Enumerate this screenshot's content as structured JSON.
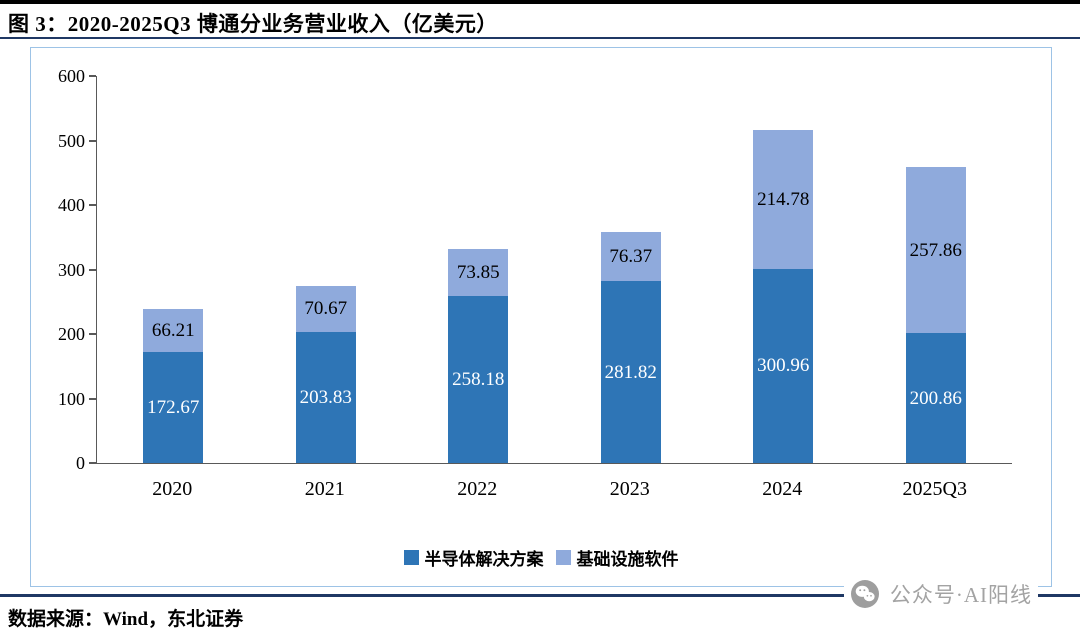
{
  "header": {
    "title": "图 3：2020-2025Q3 博通分业务营业收入（亿美元）"
  },
  "chart_data": {
    "type": "bar",
    "stacked": true,
    "title": "2020-2025Q3 博通分业务营业收入（亿美元）",
    "categories": [
      "2020",
      "2021",
      "2022",
      "2023",
      "2024",
      "2025Q3"
    ],
    "series": [
      {
        "name": "半导体解决方案",
        "color": "#2E75B6",
        "label_color": "#FFFFFF",
        "values": [
          172.67,
          203.83,
          258.18,
          281.82,
          300.96,
          200.86
        ]
      },
      {
        "name": "基础设施软件",
        "color": "#8FAADC",
        "label_color": "#000000",
        "values": [
          66.21,
          70.67,
          73.85,
          76.37,
          214.78,
          257.86
        ]
      }
    ],
    "ylim": [
      0,
      600
    ],
    "yticks": [
      0,
      100,
      200,
      300,
      400,
      500,
      600
    ],
    "grid": false,
    "legend_position": "bottom"
  },
  "footer": {
    "source": "数据来源：Wind，东北证券"
  },
  "watermark": {
    "text": "公众号·AI阳线"
  },
  "colors": {
    "rule_navy": "#1F3864",
    "chart_border": "#9DC3E6",
    "axis": "#595959",
    "watermark_gray": "#A3A3A3"
  }
}
